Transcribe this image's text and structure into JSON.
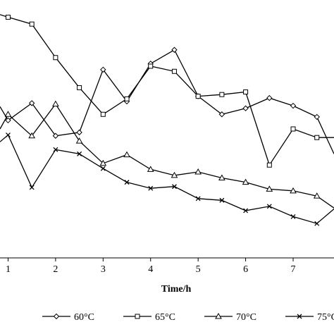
{
  "chart_data": {
    "type": "line",
    "xlabel": "Time/h",
    "ylabel": "",
    "xlim": [
      0.83,
      7.86
    ],
    "ylim": [
      0,
      30
    ],
    "x_ticks": [
      1,
      2,
      3,
      4,
      5,
      6,
      7
    ],
    "grid": false,
    "legend": "bottom",
    "colors": {
      "line": "#000000",
      "marker_fill": "#ffffff"
    },
    "series": [
      {
        "name": "60°C",
        "marker": "diamond",
        "points": [
          [
            0.83,
            17.6
          ],
          [
            1.0,
            16.0
          ],
          [
            1.5,
            18.0
          ],
          [
            2.0,
            14.2
          ],
          [
            2.5,
            14.6
          ],
          [
            3.0,
            21.9
          ],
          [
            3.5,
            18.2
          ],
          [
            4.0,
            22.6
          ],
          [
            4.5,
            24.2
          ],
          [
            5.0,
            18.8
          ],
          [
            5.5,
            16.7
          ],
          [
            6.0,
            17.4
          ],
          [
            6.5,
            18.6
          ],
          [
            7.0,
            17.7
          ],
          [
            7.5,
            16.4
          ],
          [
            7.86,
            12.1
          ]
        ]
      },
      {
        "name": "65°C",
        "marker": "square",
        "points": [
          [
            0.83,
            28.3
          ],
          [
            1.0,
            28.0
          ],
          [
            1.5,
            27.2
          ],
          [
            2.0,
            23.3
          ],
          [
            2.5,
            19.8
          ],
          [
            3.0,
            16.7
          ],
          [
            3.5,
            18.5
          ],
          [
            4.0,
            22.3
          ],
          [
            4.5,
            21.7
          ],
          [
            5.0,
            18.8
          ],
          [
            5.5,
            19.0
          ],
          [
            6.0,
            19.3
          ],
          [
            6.5,
            10.8
          ],
          [
            7.0,
            15.0
          ],
          [
            7.5,
            14.0
          ],
          [
            7.86,
            14.0
          ]
        ]
      },
      {
        "name": "70°C",
        "marker": "triangle",
        "points": [
          [
            0.83,
            15.0
          ],
          [
            1.0,
            16.7
          ],
          [
            1.5,
            14.2
          ],
          [
            2.0,
            17.9
          ],
          [
            2.5,
            13.6
          ],
          [
            3.0,
            11.0
          ],
          [
            3.5,
            12.0
          ],
          [
            4.0,
            10.3
          ],
          [
            4.5,
            9.6
          ],
          [
            5.0,
            10.0
          ],
          [
            5.5,
            9.3
          ],
          [
            6.0,
            8.8
          ],
          [
            6.5,
            8.0
          ],
          [
            7.0,
            7.8
          ],
          [
            7.5,
            7.2
          ],
          [
            7.86,
            5.8
          ]
        ]
      },
      {
        "name": "75°C",
        "marker": "x",
        "points": [
          [
            0.83,
            13.5
          ],
          [
            1.0,
            14.3
          ],
          [
            1.5,
            8.2
          ],
          [
            2.0,
            12.6
          ],
          [
            2.5,
            12.1
          ],
          [
            3.0,
            10.4
          ],
          [
            3.5,
            8.8
          ],
          [
            4.0,
            8.1
          ],
          [
            4.5,
            8.3
          ],
          [
            5.0,
            6.9
          ],
          [
            5.5,
            6.7
          ],
          [
            6.0,
            5.5
          ],
          [
            6.5,
            6.0
          ],
          [
            7.0,
            4.8
          ],
          [
            7.5,
            4.0
          ],
          [
            7.86,
            5.7
          ]
        ]
      }
    ]
  }
}
